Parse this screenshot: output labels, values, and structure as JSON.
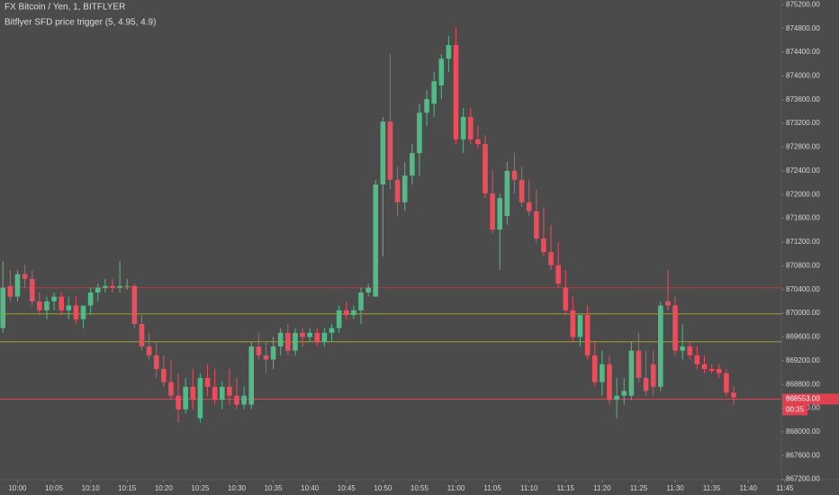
{
  "chart_data": {
    "type": "candlestick",
    "title": "FX Bitcoin / Yen, 1, BITFLYER",
    "subtitle": "Bitflyer SFD price trigger (5, 4.95, 4.9)",
    "up_color": "#53b987",
    "down_color": "#eb4d5c",
    "ylim": [
      867240,
      875280
    ],
    "yticks": [
      {
        "value": 875200,
        "label": "875200.00"
      },
      {
        "value": 874800,
        "label": "874800.00"
      },
      {
        "value": 874400,
        "label": "874400.00"
      },
      {
        "value": 874000,
        "label": "874000.00"
      },
      {
        "value": 873600,
        "label": "873600.00"
      },
      {
        "value": 873200,
        "label": "873200.00"
      },
      {
        "value": 872800,
        "label": "872800.00"
      },
      {
        "value": 872400,
        "label": "872400.00"
      },
      {
        "value": 872000,
        "label": "872000.00"
      },
      {
        "value": 871600,
        "label": "871600.00"
      },
      {
        "value": 871200,
        "label": "871200.00"
      },
      {
        "value": 870800,
        "label": "870800.00"
      },
      {
        "value": 870400,
        "label": "870400.00"
      },
      {
        "value": 870000,
        "label": "870000.00"
      },
      {
        "value": 869600,
        "label": "869600.00"
      },
      {
        "value": 869200,
        "label": "869200.00"
      },
      {
        "value": 868800,
        "label": "868800.00"
      },
      {
        "value": 868400,
        "label": "868400.00"
      },
      {
        "value": 868000,
        "label": "868000.00"
      },
      {
        "value": 867600,
        "label": "867600.00"
      },
      {
        "value": 867200,
        "label": "867200.00"
      }
    ],
    "xlim": [
      -0.4,
      106.9
    ],
    "xticks": [
      {
        "value": 2,
        "label": "10:00"
      },
      {
        "value": 7,
        "label": "10:05"
      },
      {
        "value": 12,
        "label": "10:10"
      },
      {
        "value": 17,
        "label": "10:15"
      },
      {
        "value": 22,
        "label": "10:20"
      },
      {
        "value": 27,
        "label": "10:25"
      },
      {
        "value": 32,
        "label": "10:30"
      },
      {
        "value": 37,
        "label": "10:35"
      },
      {
        "value": 42,
        "label": "10:40"
      },
      {
        "value": 47,
        "label": "10:45"
      },
      {
        "value": 52,
        "label": "10:50"
      },
      {
        "value": 57,
        "label": "10:55"
      },
      {
        "value": 62,
        "label": "11:00"
      },
      {
        "value": 67,
        "label": "11:05"
      },
      {
        "value": 72,
        "label": "11:10"
      },
      {
        "value": 77,
        "label": "11:15"
      },
      {
        "value": 82,
        "label": "11:20"
      },
      {
        "value": 87,
        "label": "11:25"
      },
      {
        "value": 92,
        "label": "11:30"
      },
      {
        "value": 97,
        "label": "11:35"
      },
      {
        "value": 102,
        "label": "11:40"
      },
      {
        "value": 107,
        "label": "11:45"
      }
    ],
    "levels": [
      {
        "value": 870430,
        "color": "#b0403f"
      },
      {
        "value": 869990,
        "color": "#a39b2e"
      },
      {
        "value": 869520,
        "color": "#a39b2e"
      }
    ],
    "last_price": {
      "value": 868553,
      "label": "868553.00",
      "color": "#e0404f"
    },
    "countdown": "00:35",
    "ohlc": [
      [
        869750,
        870880,
        869670,
        870430
      ],
      [
        870460,
        870730,
        870200,
        870280
      ],
      [
        870280,
        870730,
        870200,
        870660
      ],
      [
        870660,
        870810,
        870430,
        870580
      ],
      [
        870580,
        870730,
        870130,
        870200
      ],
      [
        870200,
        870350,
        869970,
        870050
      ],
      [
        870050,
        870280,
        869900,
        870200
      ],
      [
        870200,
        870350,
        870050,
        870280
      ],
      [
        870280,
        870350,
        869970,
        870050
      ],
      [
        870050,
        870280,
        869900,
        870130
      ],
      [
        870130,
        870280,
        869820,
        869900
      ],
      [
        869900,
        870130,
        869750,
        870130
      ],
      [
        870130,
        870430,
        869970,
        870350
      ],
      [
        870350,
        870500,
        870200,
        870430
      ],
      [
        870430,
        870580,
        870350,
        870460
      ],
      [
        870460,
        870580,
        870350,
        870430
      ],
      [
        870430,
        870880,
        870350,
        870460
      ],
      [
        870460,
        870580,
        870400,
        870460
      ],
      [
        870460,
        870500,
        869750,
        869820
      ],
      [
        869820,
        869970,
        869370,
        869440
      ],
      [
        869440,
        869670,
        869220,
        869290
      ],
      [
        869290,
        869520,
        868910,
        869060
      ],
      [
        869060,
        869290,
        868760,
        868840
      ],
      [
        868840,
        869220,
        868540,
        868610
      ],
      [
        868610,
        868990,
        868160,
        868380
      ],
      [
        868380,
        868910,
        868310,
        868760
      ],
      [
        868760,
        869060,
        868380,
        868540
      ],
      [
        868230,
        868990,
        868160,
        868910
      ],
      [
        868910,
        869140,
        868610,
        868760
      ],
      [
        868760,
        869060,
        868460,
        868540
      ],
      [
        868540,
        868840,
        868380,
        868760
      ],
      [
        868760,
        869060,
        868460,
        868610
      ],
      [
        868610,
        868910,
        868380,
        868460
      ],
      [
        868460,
        868760,
        868380,
        868610
      ],
      [
        868460,
        869520,
        868380,
        869440
      ],
      [
        869440,
        869670,
        869220,
        869290
      ],
      [
        869290,
        869520,
        868990,
        869220
      ],
      [
        869220,
        869600,
        869060,
        869440
      ],
      [
        869440,
        869750,
        869290,
        869670
      ],
      [
        869670,
        869820,
        869290,
        869370
      ],
      [
        869370,
        869750,
        869290,
        869670
      ],
      [
        869670,
        869750,
        869440,
        869600
      ],
      [
        869600,
        869750,
        869520,
        869670
      ],
      [
        869670,
        869750,
        869440,
        869520
      ],
      [
        869520,
        869750,
        869440,
        869670
      ],
      [
        869670,
        869820,
        869520,
        869750
      ],
      [
        869750,
        870130,
        869670,
        870050
      ],
      [
        870050,
        870200,
        869900,
        869970
      ],
      [
        869970,
        870130,
        869900,
        870050
      ],
      [
        870050,
        870430,
        869820,
        870350
      ],
      [
        870350,
        870500,
        870280,
        870430
      ],
      [
        870280,
        872250,
        870280,
        872170
      ],
      [
        872170,
        873310,
        870960,
        873230
      ],
      [
        873230,
        874370,
        872090,
        872250
      ],
      [
        872250,
        872470,
        871640,
        871870
      ],
      [
        871870,
        872550,
        871720,
        872320
      ],
      [
        872320,
        872850,
        872170,
        872700
      ],
      [
        872700,
        873530,
        872320,
        873380
      ],
      [
        873380,
        873760,
        873160,
        873610
      ],
      [
        873530,
        874060,
        873310,
        873910
      ],
      [
        873840,
        874370,
        873610,
        874290
      ],
      [
        874290,
        874670,
        874060,
        874520
      ],
      [
        874520,
        874820,
        872850,
        872930
      ],
      [
        872930,
        873460,
        872700,
        873310
      ],
      [
        873310,
        873460,
        872850,
        872930
      ],
      [
        872930,
        873160,
        872780,
        872850
      ],
      [
        872850,
        873000,
        871940,
        872020
      ],
      [
        872020,
        872400,
        871340,
        871410
      ],
      [
        871410,
        872020,
        870730,
        871940
      ],
      [
        871640,
        872550,
        871490,
        872400
      ],
      [
        872400,
        872700,
        872020,
        872250
      ],
      [
        872250,
        872470,
        871790,
        871870
      ],
      [
        871870,
        872250,
        871640,
        871720
      ],
      [
        871720,
        872090,
        871190,
        871260
      ],
      [
        871260,
        871790,
        870960,
        871030
      ],
      [
        871030,
        871490,
        870730,
        870810
      ],
      [
        870810,
        871190,
        870430,
        870500
      ],
      [
        870430,
        870730,
        869970,
        870050
      ],
      [
        870050,
        870280,
        869520,
        869600
      ],
      [
        869600,
        869970,
        869440,
        869970
      ],
      [
        869970,
        870130,
        869220,
        869290
      ],
      [
        869290,
        869520,
        868760,
        868840
      ],
      [
        868840,
        869370,
        868610,
        869140
      ],
      [
        869140,
        869290,
        868460,
        868540
      ],
      [
        868540,
        868910,
        868230,
        868610
      ],
      [
        868610,
        868910,
        868460,
        868690
      ],
      [
        868610,
        869520,
        868540,
        869370
      ],
      [
        869370,
        869670,
        868840,
        868910
      ],
      [
        868910,
        869370,
        868610,
        868690
      ],
      [
        869140,
        869370,
        868610,
        868760
      ],
      [
        868760,
        870200,
        868690,
        870130
      ],
      [
        870200,
        870730,
        870050,
        870130
      ],
      [
        870130,
        870280,
        869290,
        869370
      ],
      [
        869370,
        869820,
        869220,
        869440
      ],
      [
        869440,
        869520,
        869220,
        869290
      ],
      [
        869290,
        869440,
        869060,
        869140
      ],
      [
        869140,
        869290,
        868990,
        869060
      ],
      [
        869060,
        869140,
        868990,
        869030
      ],
      [
        869060,
        869140,
        868910,
        868990
      ],
      [
        868990,
        869060,
        868610,
        868660
      ],
      [
        868660,
        868760,
        868460,
        868580
      ]
    ]
  }
}
